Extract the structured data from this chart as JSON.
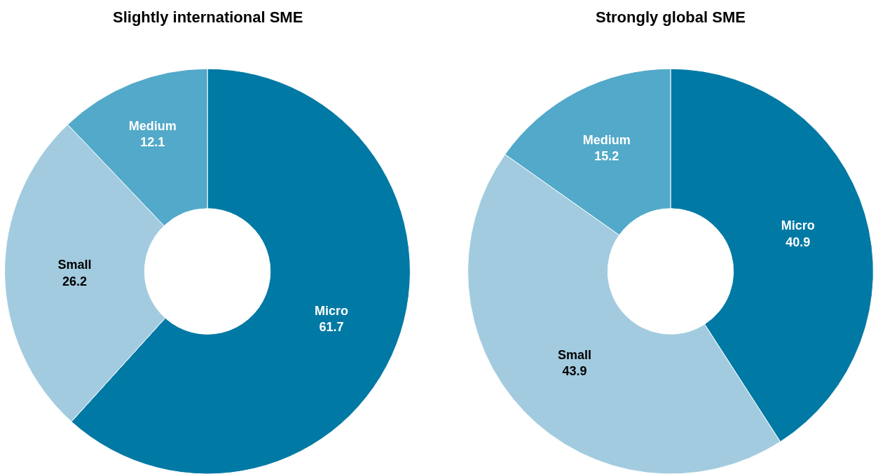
{
  "chart_data": [
    {
      "type": "donut",
      "title": "Slightly international SME",
      "categories": [
        "Micro",
        "Small",
        "Medium"
      ],
      "values": [
        61.7,
        26.2,
        12.1
      ],
      "colors": [
        "#0079a4",
        "#a2cbdf",
        "#52a9c9"
      ],
      "data_labels": true
    },
    {
      "type": "donut",
      "title": "Strongly global SME",
      "categories": [
        "Micro",
        "Small",
        "Medium"
      ],
      "values": [
        40.9,
        43.9,
        15.2
      ],
      "colors": [
        "#0079a4",
        "#a2cbdf",
        "#52a9c9"
      ],
      "data_labels": true
    }
  ]
}
